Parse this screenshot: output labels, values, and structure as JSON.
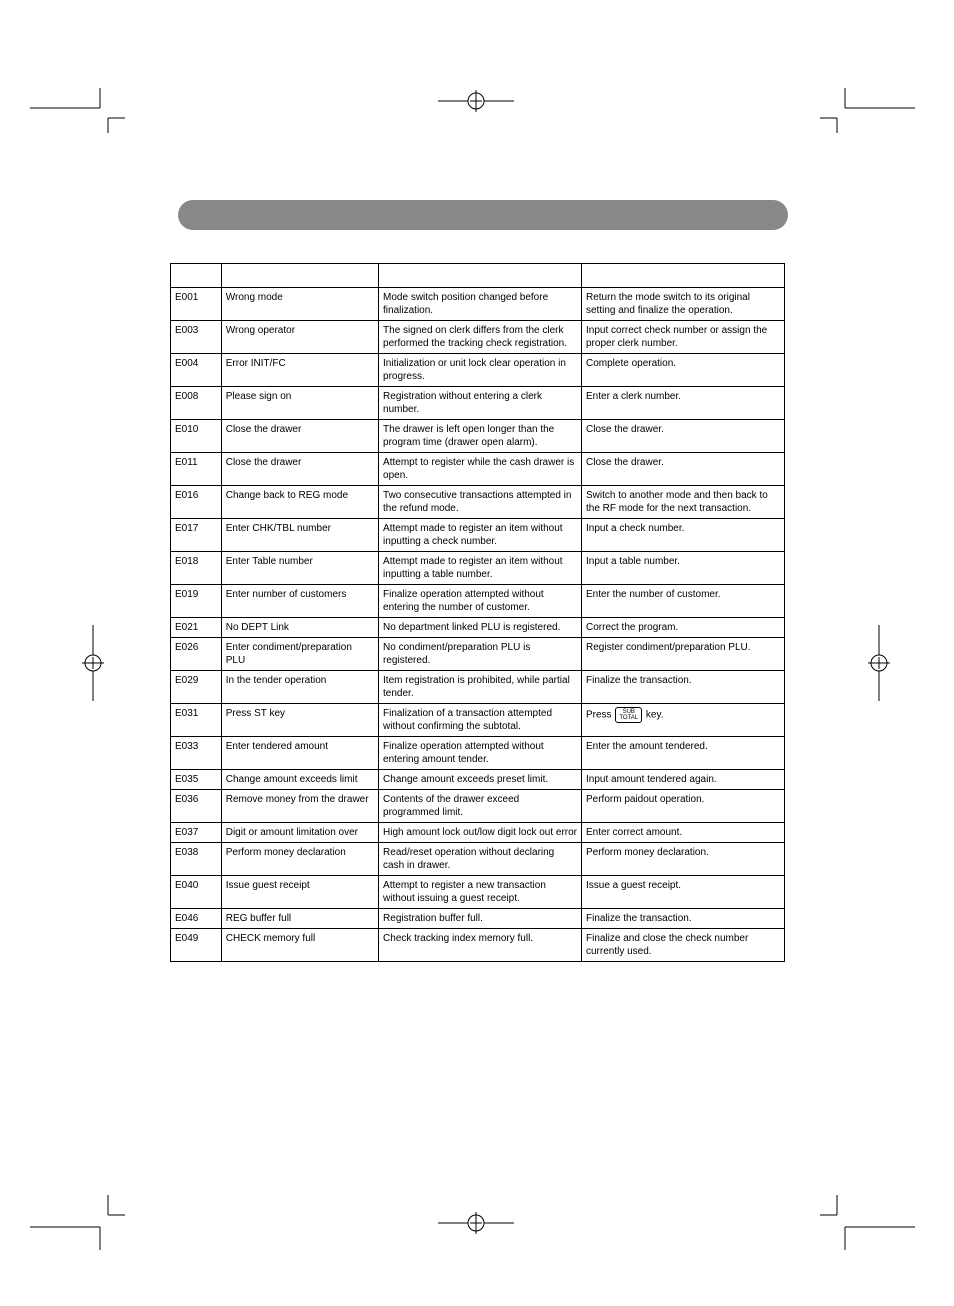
{
  "table": {
    "headers": [
      "",
      "",
      "",
      ""
    ],
    "col_widths": {
      "code": 50,
      "msg": 155,
      "mean": 200,
      "act": 200
    },
    "rows": [
      {
        "code": "E001",
        "msg": "Wrong mode",
        "mean": "Mode switch position changed before finalization.",
        "act": "Return the mode switch to its original setting and finalize the operation."
      },
      {
        "code": "E003",
        "msg": "Wrong operator",
        "mean": "The signed on clerk differs from the clerk performed the tracking check registration.",
        "act": "Input correct check number or assign the proper clerk number."
      },
      {
        "code": "E004",
        "msg": "Error INIT/FC",
        "mean": "Initialization or unit lock clear operation in progress.",
        "act": "Complete operation."
      },
      {
        "code": "E008",
        "msg": "Please sign on",
        "mean": "Registration without entering a clerk number.",
        "act": "Enter a clerk number."
      },
      {
        "code": "E010",
        "msg": "Close the drawer",
        "mean": "The drawer is left open longer than the program time (drawer open alarm).",
        "act": "Close the drawer."
      },
      {
        "code": "E011",
        "msg": "Close the drawer",
        "mean": "Attempt to register while the cash drawer is open.",
        "act": "Close the drawer."
      },
      {
        "code": "E016",
        "msg": "Change back to REG mode",
        "mean": "Two consecutive transactions attempted in the refund mode.",
        "act": "Switch to another mode and then back to the RF mode for the next transaction."
      },
      {
        "code": "E017",
        "msg": "Enter CHK/TBL number",
        "mean": "Attempt made to register an item without inputting a check number.",
        "act": "Input a check number."
      },
      {
        "code": "E018",
        "msg": "Enter Table number",
        "mean": "Attempt made to register an item without inputting a table number.",
        "act": "Input a table number."
      },
      {
        "code": "E019",
        "msg": "Enter number of customers",
        "mean": "Finalize operation attempted without entering the number of customer.",
        "act": "Enter the number of customer."
      },
      {
        "code": "E021",
        "msg": "No DEPT Link",
        "mean": "No department linked PLU is registered.",
        "act": "Correct the program."
      },
      {
        "code": "E026",
        "msg": "Enter condiment/preparation PLU",
        "mean": "No condiment/preparation PLU is registered.",
        "act": "Register condiment/preparation PLU."
      },
      {
        "code": "E029",
        "msg": "In the tender operation",
        "mean": "Item registration is prohibited, while partial tender.",
        "act": "Finalize the transaction."
      },
      {
        "code": "E031",
        "msg": "Press ST key",
        "mean": "Finalization of a transaction attempted without confirming the subtotal.",
        "act_prefix": "Press ",
        "act_key": {
          "line1": "SUB",
          "line2": "TOTAL"
        },
        "act_suffix": " key."
      },
      {
        "code": "E033",
        "msg": "Enter tendered amount",
        "mean": "Finalize operation attempted without entering amount tender.",
        "act": "Enter the amount tendered."
      },
      {
        "code": "E035",
        "msg": "Change amount exceeds limit",
        "mean": "Change amount exceeds preset limit.",
        "act": "Input amount tendered again."
      },
      {
        "code": "E036",
        "msg": "Remove money from the drawer",
        "mean": "Contents of the drawer exceed programmed limit.",
        "act": "Perform paidout operation."
      },
      {
        "code": "E037",
        "msg": "Digit or amount limitation over",
        "mean": "High amount lock out/low digit lock out error",
        "act": "Enter correct amount."
      },
      {
        "code": "E038",
        "msg": "Perform money declaration",
        "mean": "Read/reset operation without declaring cash in drawer.",
        "act": "Perform money declaration."
      },
      {
        "code": "E040",
        "msg": "Issue guest receipt",
        "mean": "Attempt to register a new transaction without issuing a guest receipt.",
        "act": "Issue a guest receipt."
      },
      {
        "code": "E046",
        "msg": "REG buffer full",
        "mean": "Registration buffer full.",
        "act": "Finalize the transaction."
      },
      {
        "code": "E049",
        "msg": "CHECK memory full",
        "mean": "Check tracking index memory full.",
        "act": "Finalize and close the check number currently used."
      }
    ]
  },
  "style": {
    "header_bar_color": "#888888",
    "border_color": "#000000",
    "font_size": 10,
    "font_family": "Arial",
    "page_bg": "#ffffff"
  }
}
